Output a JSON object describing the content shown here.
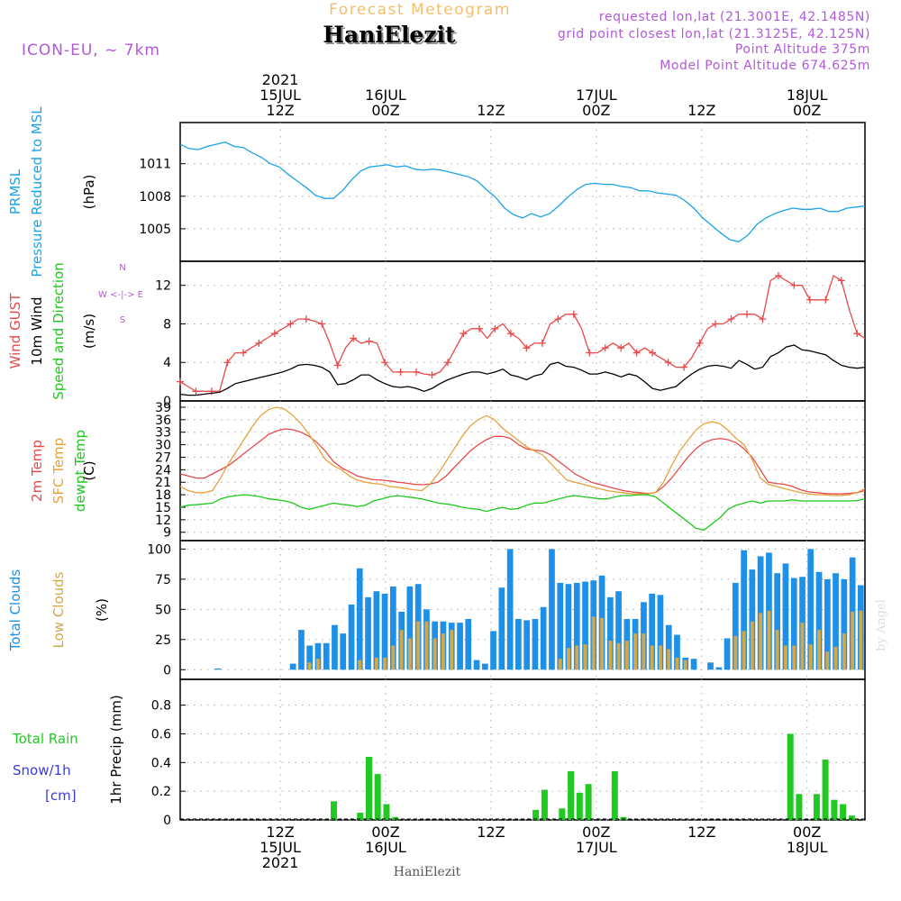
{
  "header": {
    "forecast_title": "Forecast Meteogram",
    "model_label": "ICON-EU, ~ 7km",
    "station_name": "HaniElezit",
    "requested": "requested lon,lat (21.3001E, 42.1485N)",
    "closest": "grid point closest lon,lat (21.3125E, 42.125N)",
    "point_alt": "Point Altitude 375m",
    "model_alt": "Model Point Altitude 674.625m",
    "footer_name": "HaniElezit",
    "credit": "by Angel"
  },
  "colors": {
    "pressure": "#1aa3e8",
    "gust": "#e84a4a",
    "wind10m": "#000000",
    "temp2m": "#e84a4a",
    "sfc_temp": "#e8a23a",
    "dewpt": "#1ec81e",
    "total_clouds": "#1e90e8",
    "low_clouds": "#d4a849",
    "rain": "#22c922",
    "snow": "#3a3ae0",
    "header_purple": "#b05ad8",
    "forecast_title": "#f0c070"
  },
  "time_axis": {
    "start_hour": 0,
    "end_hour": 65,
    "top_labels": [
      {
        "hour": 9.5,
        "lines": [
          "2021",
          "15JUL",
          "12Z"
        ]
      },
      {
        "hour": 19.5,
        "lines": [
          "16JUL",
          "00Z"
        ]
      },
      {
        "hour": 29.5,
        "lines": [
          "12Z"
        ]
      },
      {
        "hour": 39.5,
        "lines": [
          "17JUL",
          "00Z"
        ]
      },
      {
        "hour": 49.5,
        "lines": [
          "12Z"
        ]
      },
      {
        "hour": 59.5,
        "lines": [
          "18JUL",
          "00Z"
        ]
      }
    ],
    "bottom_labels": [
      {
        "hour": 9.5,
        "lines": [
          "12Z",
          "15JUL",
          "2021"
        ]
      },
      {
        "hour": 19.5,
        "lines": [
          "00Z",
          "16JUL"
        ]
      },
      {
        "hour": 29.5,
        "lines": [
          "12Z"
        ]
      },
      {
        "hour": 39.5,
        "lines": [
          "00Z",
          "17JUL"
        ]
      },
      {
        "hour": 49.5,
        "lines": [
          "12Z"
        ]
      },
      {
        "hour": 59.5,
        "lines": [
          "00Z",
          "18JUL"
        ]
      }
    ],
    "gridlines": [
      9.5,
      19.5,
      29.5,
      39.5,
      49.5,
      59.5
    ]
  },
  "chart_data": [
    {
      "type": "line",
      "panel": "pressure",
      "ylabel_lines": [
        "PRMSL",
        "Pressure Reduced to MSL"
      ],
      "unit": "(hPa)",
      "yticks": [
        1005,
        1008,
        1011
      ],
      "ylim": [
        1002,
        1014.8
      ],
      "series": [
        {
          "name": "PRMSL",
          "values": [
            1012.8,
            1012.4,
            1012.3,
            1012.6,
            1012.8,
            1013.0,
            1012.6,
            1012.5,
            1012.0,
            1011.6,
            1011.0,
            1010.7,
            1010.0,
            1009.4,
            1008.8,
            1008.1,
            1007.8,
            1007.8,
            1008.5,
            1009.5,
            1010.3,
            1010.7,
            1010.8,
            1010.9,
            1010.7,
            1010.8,
            1010.5,
            1010.4,
            1010.5,
            1010.4,
            1010.2,
            1010.0,
            1009.8,
            1009.4,
            1008.6,
            1007.9,
            1006.9,
            1006.3,
            1006.0,
            1006.4,
            1006.1,
            1006.4,
            1007.1,
            1007.9,
            1008.6,
            1009.1,
            1009.2,
            1009.1,
            1009.1,
            1008.9,
            1008.8,
            1008.5,
            1008.5,
            1008.3,
            1008.2,
            1008.1,
            1007.6,
            1006.9,
            1006.0,
            1005.3,
            1004.6,
            1004.0,
            1003.8,
            1004.4,
            1005.4,
            1006.0,
            1006.4,
            1006.7,
            1006.9,
            1006.8,
            1006.8,
            1006.9,
            1006.6,
            1006.6,
            1006.9,
            1007.0,
            1007.1
          ]
        }
      ]
    },
    {
      "type": "line",
      "panel": "wind",
      "ylabel_lines": [
        "Wind GUST",
        "10m Wind",
        "Speed and Direction"
      ],
      "unit": "(m/s)",
      "compass": [
        "N",
        "W <-|-> E",
        "S"
      ],
      "yticks": [
        0,
        4,
        8,
        12
      ],
      "ylim": [
        0,
        14.5
      ],
      "series": [
        {
          "name": "Wind GUST",
          "values": [
            2.0,
            1.5,
            1.0,
            1.0,
            1.0,
            1.0,
            4.0,
            5.0,
            5.0,
            5.5,
            6.0,
            6.5,
            7.0,
            7.5,
            8.0,
            8.5,
            8.5,
            8.3,
            8.0,
            6.0,
            3.7,
            5.5,
            6.5,
            6.0,
            6.2,
            6.0,
            4.0,
            3.0,
            3.0,
            3.0,
            3.0,
            2.8,
            2.7,
            3.0,
            4.0,
            5.5,
            7.0,
            7.5,
            7.5,
            6.5,
            7.5,
            8.0,
            7.0,
            6.5,
            5.5,
            6.0,
            6.0,
            8.0,
            8.5,
            9.0,
            9.0,
            7.5,
            5.0,
            5.0,
            5.5,
            6.0,
            5.5,
            6.0,
            5.0,
            5.5,
            5.0,
            4.5,
            4.0,
            3.5,
            3.5,
            4.5,
            6.0,
            7.5,
            8.0,
            8.0,
            8.5,
            9.0,
            9.0,
            9.0,
            8.5,
            12.5,
            13.0,
            12.5,
            12.0,
            12.0,
            10.5,
            10.5,
            10.5,
            13.0,
            12.5,
            9.5,
            7.0,
            6.5
          ]
        },
        {
          "name": "10m Wind",
          "values": [
            0.7,
            0.6,
            0.6,
            0.7,
            0.8,
            0.9,
            1.3,
            1.8,
            2.0,
            2.2,
            2.4,
            2.6,
            2.8,
            3.0,
            3.3,
            3.7,
            3.8,
            3.7,
            3.5,
            3.0,
            1.7,
            1.8,
            2.2,
            2.7,
            2.7,
            2.2,
            1.8,
            1.5,
            1.4,
            1.5,
            1.3,
            1.0,
            1.3,
            1.8,
            2.2,
            2.5,
            2.8,
            3.0,
            3.0,
            2.8,
            3.0,
            3.3,
            2.7,
            2.5,
            2.2,
            2.6,
            2.8,
            3.8,
            4.0,
            3.6,
            3.5,
            3.2,
            2.8,
            2.8,
            3.0,
            2.8,
            2.5,
            2.8,
            2.6,
            2.0,
            1.3,
            1.1,
            1.3,
            1.5,
            2.2,
            2.8,
            3.3,
            3.6,
            3.7,
            3.6,
            3.4,
            4.2,
            3.8,
            3.3,
            3.5,
            4.6,
            5.0,
            5.6,
            5.8,
            5.3,
            5.2,
            5.0,
            4.8,
            4.2,
            3.7,
            3.5,
            3.4,
            3.5
          ]
        }
      ]
    },
    {
      "type": "line",
      "panel": "temperature",
      "ylabel_lines": [
        "2m Temp",
        "SFC Temp",
        "dewpt Temp"
      ],
      "unit": "(C)",
      "yticks": [
        9,
        12,
        15,
        18,
        21,
        24,
        27,
        30,
        33,
        36,
        39
      ],
      "ylim": [
        7,
        40.5
      ],
      "series": [
        {
          "name": "2m Temp",
          "values": [
            23.0,
            22.5,
            22.0,
            22.0,
            23.0,
            24.0,
            25.0,
            26.5,
            28.0,
            29.5,
            31.0,
            32.5,
            33.3,
            33.8,
            33.6,
            33.0,
            32.0,
            30.5,
            28.5,
            26.0,
            24.5,
            23.5,
            22.5,
            22.0,
            21.6,
            21.5,
            21.3,
            21.0,
            20.8,
            20.5,
            20.4,
            20.6,
            21.0,
            22.5,
            24.5,
            26.5,
            28.5,
            30.0,
            31.2,
            32.0,
            32.0,
            31.5,
            30.0,
            29.0,
            28.7,
            28.5,
            27.5,
            26.0,
            24.5,
            23.0,
            22.0,
            21.0,
            20.5,
            20.0,
            19.5,
            19.0,
            18.7,
            18.5,
            18.3,
            18.5,
            20.0,
            22.0,
            24.5,
            27.0,
            29.0,
            30.5,
            31.2,
            31.5,
            31.2,
            30.5,
            29.0,
            27.0,
            24.0,
            21.0,
            20.7,
            20.5,
            20.0,
            19.2,
            18.7,
            18.5,
            18.3,
            18.2,
            18.2,
            18.3,
            18.5,
            19.0
          ]
        },
        {
          "name": "SFC Temp",
          "values": [
            20.0,
            19.0,
            18.5,
            18.5,
            19.0,
            22.0,
            25.5,
            28.5,
            31.5,
            34.5,
            37.0,
            38.5,
            39.0,
            38.5,
            37.0,
            35.0,
            32.5,
            29.5,
            26.5,
            25.0,
            24.0,
            22.5,
            21.5,
            21.0,
            20.7,
            20.5,
            20.0,
            19.8,
            19.5,
            19.2,
            19.0,
            20.5,
            23.0,
            26.0,
            29.0,
            32.0,
            34.5,
            36.0,
            37.0,
            36.0,
            34.0,
            32.5,
            31.0,
            29.5,
            28.5,
            27.5,
            25.5,
            23.5,
            21.5,
            21.0,
            20.5,
            20.0,
            19.5,
            19.0,
            18.7,
            18.5,
            18.2,
            18.2,
            18.2,
            18.5,
            21.0,
            25.0,
            28.5,
            31.0,
            33.5,
            35.0,
            35.5,
            35.0,
            33.5,
            31.5,
            30.0,
            26.5,
            22.0,
            20.5,
            20.0,
            19.5,
            19.0,
            18.5,
            18.2,
            18.0,
            18.0,
            17.8,
            17.8,
            18.0,
            18.5,
            19.5
          ]
        },
        {
          "name": "dewpt Temp",
          "values": [
            15.0,
            15.5,
            15.6,
            15.8,
            16.0,
            17.0,
            17.5,
            17.8,
            18.0,
            17.8,
            17.5,
            17.0,
            16.8,
            16.5,
            16.0,
            15.0,
            14.5,
            15.0,
            15.5,
            16.0,
            15.7,
            15.5,
            15.2,
            15.5,
            16.5,
            17.0,
            17.5,
            17.8,
            17.5,
            17.3,
            17.0,
            16.5,
            16.0,
            15.8,
            15.5,
            15.0,
            14.7,
            14.5,
            14.0,
            14.5,
            15.0,
            14.5,
            14.7,
            15.5,
            16.0,
            16.0,
            16.5,
            17.0,
            17.5,
            17.8,
            17.5,
            17.3,
            17.0,
            17.0,
            17.5,
            17.8,
            17.8,
            18.0,
            18.0,
            17.5,
            16.0,
            14.5,
            13.0,
            11.5,
            10.0,
            9.5,
            11.0,
            12.5,
            14.5,
            15.5,
            16.0,
            16.5,
            16.0,
            16.5,
            16.5,
            16.5,
            16.8,
            16.5,
            16.5,
            16.5,
            16.5,
            16.5,
            16.5,
            16.5,
            16.6,
            17.0
          ]
        }
      ]
    },
    {
      "type": "bar",
      "panel": "clouds",
      "ylabel_lines": [
        "Total Clouds",
        "Low Clouds"
      ],
      "unit": "(%)",
      "yticks": [
        0,
        25,
        50,
        75,
        100
      ],
      "ylim": [
        -8,
        107
      ],
      "series": [
        {
          "name": "Total Clouds",
          "values": [
            0,
            0,
            0,
            0,
            1,
            0,
            0,
            0,
            0,
            0,
            0,
            0,
            0,
            5,
            33,
            20,
            22,
            22,
            37,
            30,
            54,
            84,
            60,
            65,
            63,
            69,
            48,
            69,
            71,
            50,
            40,
            40,
            39,
            39,
            42,
            8,
            5,
            32,
            68,
            100,
            42,
            41,
            42,
            52,
            100,
            72,
            71,
            72,
            73,
            74,
            78,
            60,
            65,
            42,
            42,
            56,
            63,
            62,
            37,
            29,
            10,
            9,
            0,
            6,
            2,
            26,
            72,
            99,
            83,
            94,
            97,
            80,
            88,
            76,
            77,
            100,
            81,
            75,
            80,
            75,
            93,
            70
          ]
        },
        {
          "name": "Low Clouds",
          "values": [
            0,
            0,
            0,
            0,
            0,
            0,
            0,
            0,
            0,
            0,
            0,
            0,
            0,
            0,
            0,
            6,
            9,
            0,
            0,
            0,
            0,
            8,
            0,
            10,
            10,
            20,
            33,
            26,
            40,
            40,
            26,
            30,
            33,
            0,
            0,
            0,
            0,
            0,
            0,
            0,
            0,
            0,
            0,
            0,
            0,
            9,
            18,
            20,
            21,
            44,
            43,
            24,
            22,
            24,
            30,
            30,
            20,
            20,
            17,
            10,
            8,
            0,
            0,
            0,
            0,
            0,
            28,
            32,
            40,
            47,
            49,
            33,
            20,
            20,
            39,
            21,
            33,
            15,
            19,
            30,
            48,
            49
          ]
        }
      ]
    },
    {
      "type": "bar",
      "panel": "precip",
      "ylabel_lines": [
        "Total  Rain",
        "Snow/1h",
        "[cm]"
      ],
      "unit": "1hr Precip (mm)",
      "yticks": [
        0,
        0.2,
        0.4,
        0.6,
        0.8
      ],
      "ylim": [
        0,
        0.98
      ],
      "series": [
        {
          "name": "Total Rain",
          "values": [
            0,
            0,
            0,
            0,
            0,
            0,
            0,
            0,
            0,
            0,
            0,
            0,
            0,
            0,
            0,
            0,
            0,
            0.13,
            0,
            0,
            0.05,
            0.44,
            0.32,
            0.11,
            0.02,
            0,
            0,
            0,
            0,
            0,
            0,
            0,
            0,
            0,
            0,
            0,
            0,
            0,
            0,
            0,
            0.07,
            0.21,
            0,
            0.08,
            0.34,
            0.19,
            0.25,
            0,
            0,
            0.34,
            0.02,
            0,
            0,
            0,
            0,
            0,
            0,
            0,
            0,
            0,
            0,
            0,
            0,
            0,
            0,
            0,
            0,
            0,
            0,
            0.6,
            0.18,
            0,
            0.18,
            0.42,
            0.14,
            0.11,
            0.03,
            0
          ]
        }
      ]
    }
  ]
}
